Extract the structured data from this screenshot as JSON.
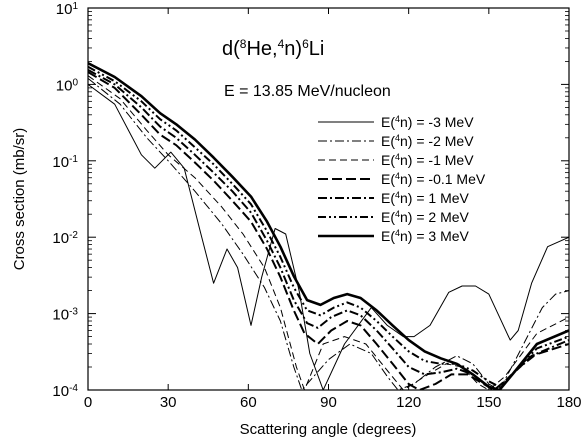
{
  "chart_data": {
    "type": "line",
    "title": "d(⁸He,⁴n)⁶Li",
    "title_parts": {
      "p1": "d(",
      "sup1": "8",
      "p2": "He,",
      "sup2": "4",
      "p3": "n)",
      "sup3": "6",
      "p4": "Li"
    },
    "subtitle": "E = 13.85 MeV/nucleon",
    "xlabel": "Scattering angle (degrees)",
    "ylabel": "Cross section (mb/sr)",
    "xlim": [
      0,
      180
    ],
    "ylim": [
      0.0001,
      10
    ],
    "yscale": "log",
    "grid": false,
    "legend_position": "right",
    "x_ticks": [
      0,
      30,
      60,
      90,
      120,
      150,
      180
    ],
    "x_tick_labels": [
      "0",
      "30",
      "60",
      "90",
      "120",
      "150",
      "180"
    ],
    "y_ticks": [
      {
        "value": 10,
        "base": "10",
        "exp": "1"
      },
      {
        "value": 1,
        "base": "10",
        "exp": "0"
      },
      {
        "value": 0.1,
        "base": "10",
        "exp": "-1"
      },
      {
        "value": 0.01,
        "base": "10",
        "exp": "-2"
      },
      {
        "value": 0.001,
        "base": "10",
        "exp": "-3"
      },
      {
        "value": 0.0001,
        "base": "10",
        "exp": "-4"
      }
    ],
    "series": [
      {
        "name": "E(⁴n) = -3 MeV",
        "label_pre": "E(",
        "label_sup": "4",
        "label_post": "n) = -3 MeV",
        "dash": "solid",
        "width": 1.0,
        "points": [
          [
            0,
            1.0
          ],
          [
            10,
            0.55
          ],
          [
            20,
            0.12
          ],
          [
            25,
            0.08
          ],
          [
            31,
            0.13
          ],
          [
            36,
            0.08
          ],
          [
            42,
            0.012
          ],
          [
            47,
            0.0025
          ],
          [
            52,
            0.007
          ],
          [
            56,
            0.004
          ],
          [
            61,
            0.0007
          ],
          [
            65,
            0.003
          ],
          [
            70,
            0.013
          ],
          [
            74,
            0.011
          ],
          [
            79,
            0.002
          ],
          [
            83,
            0.0003
          ],
          [
            88,
            0.0001
          ],
          [
            96,
            0.0004
          ],
          [
            106,
            0.0012
          ],
          [
            112,
            0.0007
          ],
          [
            118,
            0.0005
          ],
          [
            122,
            0.0005
          ],
          [
            128,
            0.0007
          ],
          [
            135,
            0.0019
          ],
          [
            140,
            0.0023
          ],
          [
            145,
            0.0023
          ],
          [
            150,
            0.0018
          ],
          [
            154,
            0.0009
          ],
          [
            158,
            0.00045
          ],
          [
            161,
            0.0006
          ],
          [
            166,
            0.0025
          ],
          [
            172,
            0.0075
          ],
          [
            180,
            0.01
          ]
        ]
      },
      {
        "name": "E(⁴n) = -2 MeV",
        "label_pre": "E(",
        "label_sup": "4",
        "label_post": "n) = -2 MeV",
        "dash": "dashdot",
        "width": 1.0,
        "points": [
          [
            0,
            1.2
          ],
          [
            12,
            0.55
          ],
          [
            22,
            0.2
          ],
          [
            30,
            0.1
          ],
          [
            40,
            0.04
          ],
          [
            50,
            0.015
          ],
          [
            58,
            0.006
          ],
          [
            66,
            0.0022
          ],
          [
            72,
            0.0008
          ],
          [
            77,
            0.0002
          ],
          [
            80,
            0.0001
          ],
          [
            90,
            0.00025
          ],
          [
            98,
            0.0004
          ],
          [
            106,
            0.0003
          ],
          [
            112,
            0.00015
          ],
          [
            116,
            0.0001
          ],
          [
            122,
            0.00012
          ],
          [
            130,
            0.0002
          ],
          [
            138,
            0.00028
          ],
          [
            144,
            0.00022
          ],
          [
            150,
            0.00012
          ],
          [
            154,
            0.0001
          ],
          [
            160,
            0.00025
          ],
          [
            170,
            0.0012
          ],
          [
            175,
            0.0018
          ],
          [
            180,
            0.002
          ]
        ]
      },
      {
        "name": "E(⁴n) = -1 MeV",
        "label_pre": "E(",
        "label_sup": "4",
        "label_post": "n) = -1 MeV",
        "dash": "dash",
        "width": 1.0,
        "points": [
          [
            0,
            1.3
          ],
          [
            12,
            0.65
          ],
          [
            22,
            0.25
          ],
          [
            30,
            0.12
          ],
          [
            40,
            0.06
          ],
          [
            50,
            0.025
          ],
          [
            58,
            0.011
          ],
          [
            66,
            0.004
          ],
          [
            72,
            0.0012
          ],
          [
            78,
            0.0002
          ],
          [
            81,
            0.0001
          ],
          [
            88,
            0.0004
          ],
          [
            96,
            0.0005
          ],
          [
            104,
            0.0004
          ],
          [
            112,
            0.00018
          ],
          [
            118,
            0.0001
          ],
          [
            126,
            0.00015
          ],
          [
            134,
            0.00022
          ],
          [
            140,
            0.0002
          ],
          [
            146,
            0.00012
          ],
          [
            150,
            0.0001
          ],
          [
            156,
            0.00015
          ],
          [
            168,
            0.00055
          ],
          [
            180,
            0.0009
          ]
        ]
      },
      {
        "name": "E(⁴n) = -0.1 MeV",
        "label_pre": "E(",
        "label_sup": "4",
        "label_post": "n) = -0.1 MeV",
        "dash": "longdash",
        "width": 2.0,
        "points": [
          [
            0,
            1.45
          ],
          [
            10,
            0.9
          ],
          [
            20,
            0.4
          ],
          [
            27,
            0.22
          ],
          [
            33,
            0.16
          ],
          [
            40,
            0.095
          ],
          [
            47,
            0.055
          ],
          [
            54,
            0.03
          ],
          [
            61,
            0.016
          ],
          [
            67,
            0.007
          ],
          [
            72,
            0.003
          ],
          [
            77,
            0.0011
          ],
          [
            81,
            0.00055
          ],
          [
            86,
            0.0004
          ],
          [
            91,
            0.0006
          ],
          [
            97,
            0.0008
          ],
          [
            102,
            0.0007
          ],
          [
            108,
            0.0004
          ],
          [
            114,
            0.00022
          ],
          [
            120,
            0.00012
          ],
          [
            124,
            0.0001
          ],
          [
            130,
            0.00012
          ],
          [
            136,
            0.00016
          ],
          [
            142,
            0.00016
          ],
          [
            148,
            0.00012
          ],
          [
            152,
            0.0001
          ],
          [
            158,
            0.00015
          ],
          [
            166,
            0.00028
          ],
          [
            180,
            0.0004
          ]
        ]
      },
      {
        "name": "E(⁴n) = 1 MeV",
        "label_pre": "E(",
        "label_sup": "4",
        "label_post": "n) = 1 MeV",
        "dash": "dashdot",
        "width": 2.0,
        "points": [
          [
            0,
            1.55
          ],
          [
            10,
            1.0
          ],
          [
            20,
            0.5
          ],
          [
            27,
            0.28
          ],
          [
            33,
            0.2
          ],
          [
            40,
            0.12
          ],
          [
            47,
            0.07
          ],
          [
            54,
            0.04
          ],
          [
            61,
            0.021
          ],
          [
            67,
            0.009
          ],
          [
            72,
            0.004
          ],
          [
            77,
            0.0015
          ],
          [
            82,
            0.00075
          ],
          [
            86,
            0.00065
          ],
          [
            91,
            0.0009
          ],
          [
            97,
            0.0011
          ],
          [
            102,
            0.00095
          ],
          [
            108,
            0.0006
          ],
          [
            114,
            0.00035
          ],
          [
            120,
            0.0002
          ],
          [
            126,
            0.00016
          ],
          [
            132,
            0.00017
          ],
          [
            138,
            0.00019
          ],
          [
            144,
            0.00016
          ],
          [
            150,
            0.00011
          ],
          [
            154,
            0.0001
          ],
          [
            160,
            0.00018
          ],
          [
            168,
            0.0003
          ],
          [
            180,
            0.00045
          ]
        ]
      },
      {
        "name": "E(⁴n) = 2 MeV",
        "label_pre": "E(",
        "label_sup": "4",
        "label_post": "n) = 2 MeV",
        "dash": "dashdotdot",
        "width": 2.0,
        "points": [
          [
            0,
            1.7
          ],
          [
            10,
            1.1
          ],
          [
            20,
            0.6
          ],
          [
            27,
            0.35
          ],
          [
            33,
            0.25
          ],
          [
            40,
            0.15
          ],
          [
            47,
            0.09
          ],
          [
            54,
            0.05
          ],
          [
            61,
            0.027
          ],
          [
            67,
            0.012
          ],
          [
            72,
            0.0055
          ],
          [
            77,
            0.0022
          ],
          [
            82,
            0.0011
          ],
          [
            87,
            0.00095
          ],
          [
            92,
            0.0012
          ],
          [
            97,
            0.0014
          ],
          [
            102,
            0.0012
          ],
          [
            108,
            0.0008
          ],
          [
            114,
            0.0005
          ],
          [
            120,
            0.00032
          ],
          [
            126,
            0.00024
          ],
          [
            132,
            0.00022
          ],
          [
            138,
            0.00022
          ],
          [
            144,
            0.00018
          ],
          [
            150,
            0.00013
          ],
          [
            154,
            0.00011
          ],
          [
            160,
            0.00018
          ],
          [
            168,
            0.00035
          ],
          [
            180,
            0.0005
          ]
        ]
      },
      {
        "name": "E(⁴n) = 3 MeV",
        "label_pre": "E(",
        "label_sup": "4",
        "label_post": "n) = 3 MeV",
        "dash": "solid",
        "width": 2.6,
        "points": [
          [
            0,
            1.9
          ],
          [
            10,
            1.25
          ],
          [
            20,
            0.7
          ],
          [
            27,
            0.42
          ],
          [
            33,
            0.3
          ],
          [
            40,
            0.19
          ],
          [
            47,
            0.11
          ],
          [
            54,
            0.062
          ],
          [
            61,
            0.034
          ],
          [
            67,
            0.016
          ],
          [
            72,
            0.0075
          ],
          [
            77,
            0.0031
          ],
          [
            82,
            0.0015
          ],
          [
            87,
            0.0013
          ],
          [
            92,
            0.0016
          ],
          [
            97,
            0.0018
          ],
          [
            102,
            0.0016
          ],
          [
            108,
            0.0011
          ],
          [
            114,
            0.0007
          ],
          [
            120,
            0.00045
          ],
          [
            126,
            0.00032
          ],
          [
            132,
            0.00026
          ],
          [
            138,
            0.00022
          ],
          [
            144,
            0.00016
          ],
          [
            150,
            0.00011
          ],
          [
            154,
            0.0001
          ],
          [
            160,
            0.00018
          ],
          [
            168,
            0.0004
          ],
          [
            180,
            0.0006
          ]
        ]
      }
    ]
  }
}
